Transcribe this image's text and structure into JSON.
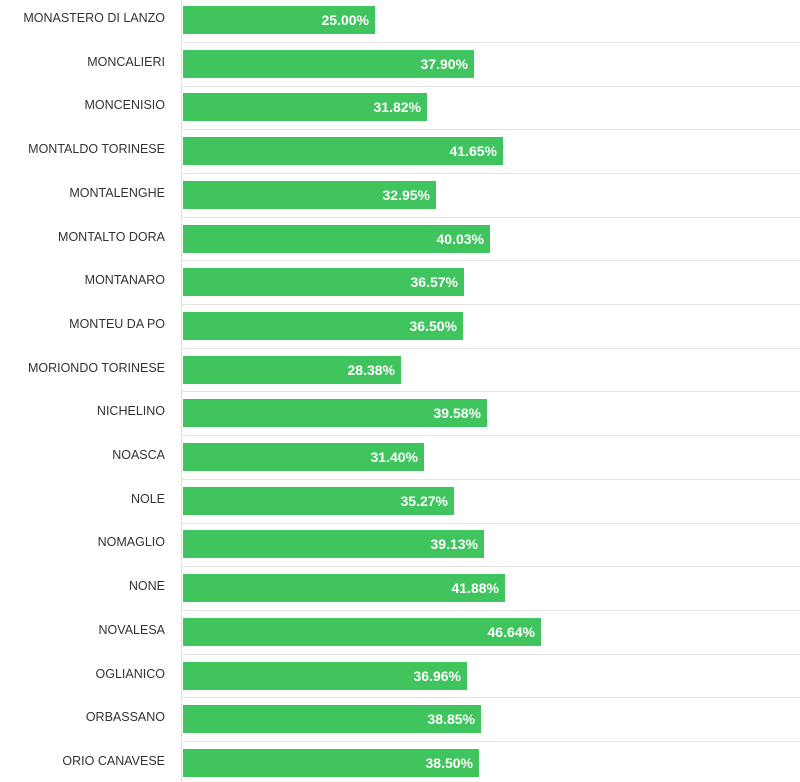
{
  "chart_data": {
    "type": "bar",
    "orientation": "horizontal",
    "title": "",
    "xlabel": "",
    "ylabel": "",
    "xlim": [
      0,
      100
    ],
    "bar_color": "#3fc45e",
    "categories": [
      "MONASTERO DI LANZO",
      "MONCALIERI",
      "MONCENISIO",
      "MONTALDO TORINESE",
      "MONTALENGHE",
      "MONTALTO DORA",
      "MONTANARO",
      "MONTEU DA PO",
      "MORIONDO TORINESE",
      "NICHELINO",
      "NOASCA",
      "NOLE",
      "NOMAGLIO",
      "NONE",
      "NOVALESA",
      "OGLIANICO",
      "ORBASSANO",
      "ORIO CANAVESE"
    ],
    "values": [
      25.0,
      37.9,
      31.82,
      41.65,
      32.95,
      40.03,
      36.57,
      36.5,
      28.38,
      39.58,
      31.4,
      35.27,
      39.13,
      41.88,
      46.64,
      36.96,
      38.85,
      38.5
    ],
    "labels": [
      "25.00%",
      "37.90%",
      "31.82%",
      "41.65%",
      "32.95%",
      "40.03%",
      "36.57%",
      "36.50%",
      "28.38%",
      "39.58%",
      "31.40%",
      "35.27%",
      "39.13%",
      "41.88%",
      "46.64%",
      "36.96%",
      "38.85%",
      "38.50%"
    ]
  }
}
